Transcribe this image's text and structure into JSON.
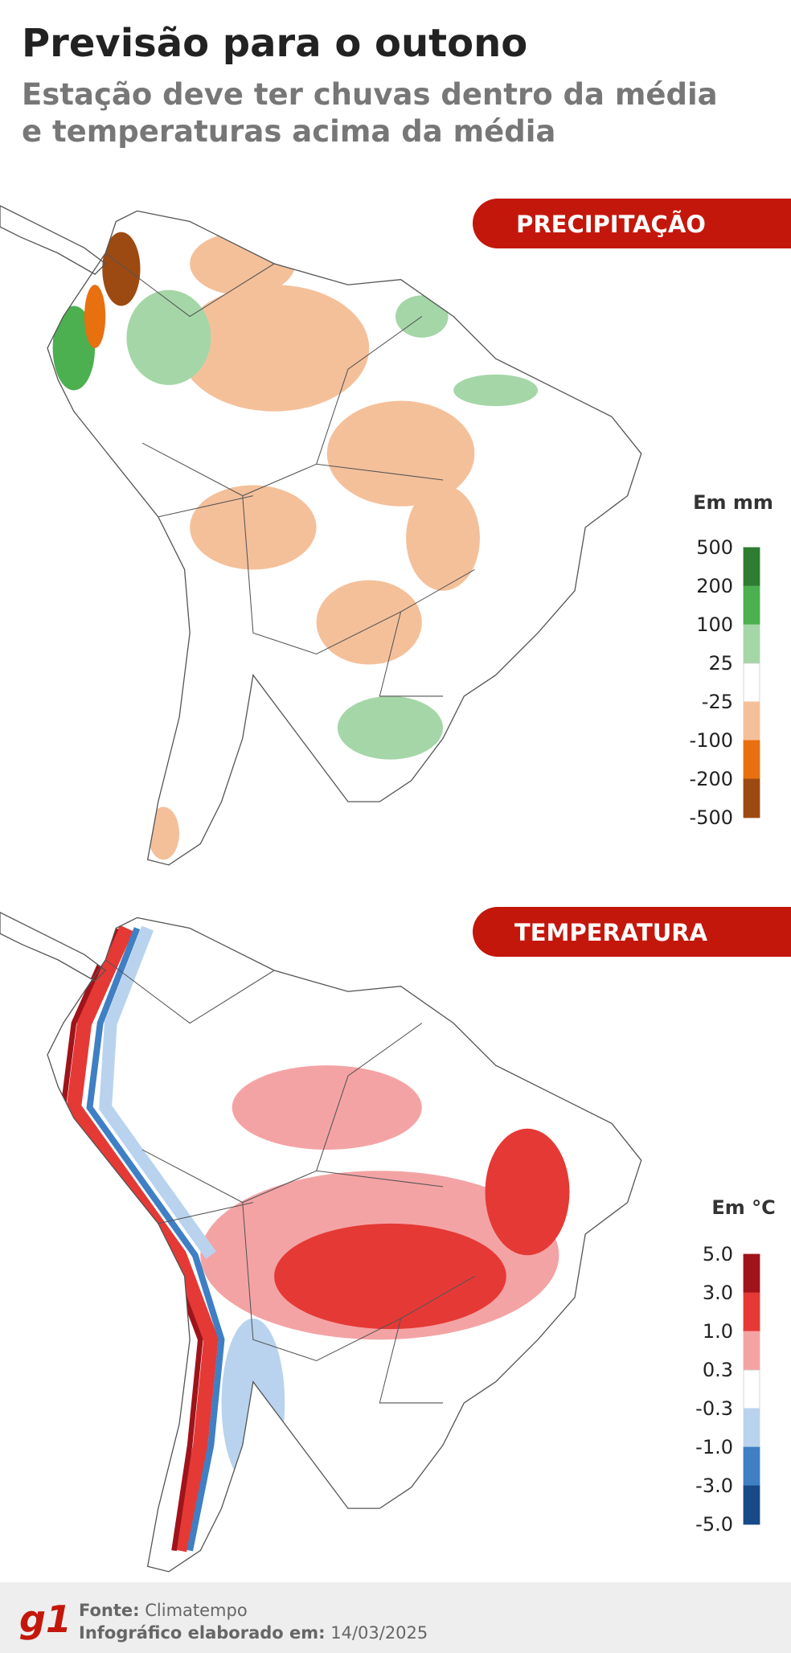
{
  "header": {
    "title": "Previsão para o outono",
    "subtitle_lines": [
      "Estação deve ter chuvas dentro da média",
      "e temperaturas acima da média"
    ]
  },
  "maps": [
    {
      "label": "PRECIPITAÇÃO",
      "legend": {
        "title": "Em mm",
        "ticks": [
          "500",
          "200",
          "100",
          "25",
          "-25",
          "-100",
          "-200",
          "-500"
        ],
        "colors": [
          "#2e7d32",
          "#4caf50",
          "#a5d6a7",
          "#ffffff",
          "#f4c09a",
          "#e8700f",
          "#9c4a12"
        ]
      }
    },
    {
      "label": "TEMPERATURA",
      "legend": {
        "title": "Em °C",
        "ticks": [
          "5.0",
          "3.0",
          "1.0",
          "0.3",
          "-0.3",
          "-1.0",
          "-3.0",
          "-5.0"
        ],
        "colors": [
          "#a0131a",
          "#e53935",
          "#f4a3a5",
          "#ffffff",
          "#b9d3ee",
          "#3f7fc4",
          "#174a86"
        ]
      }
    }
  ],
  "footer": {
    "logo": "g1",
    "source_label": "Fonte:",
    "source": "Climatempo",
    "date_label": "Infográfico elaborado em:",
    "date": "14/03/2025"
  }
}
